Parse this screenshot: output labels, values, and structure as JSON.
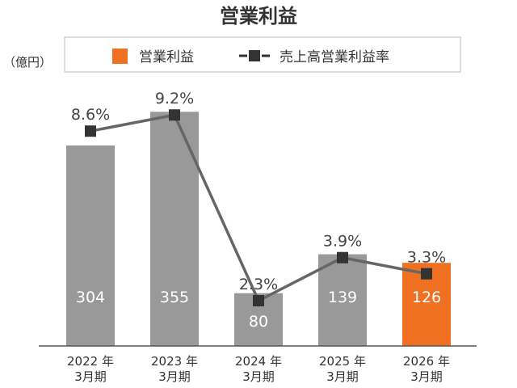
{
  "chart_data": {
    "type": "bar",
    "title": "営業利益",
    "unit_label": "（億円）",
    "categories": [
      [
        "2022 年",
        "3月期"
      ],
      [
        "2023 年",
        "3月期"
      ],
      [
        "2024 年",
        "3月期"
      ],
      [
        "2025 年",
        "3月期"
      ],
      [
        "2026 年",
        "3月期"
      ]
    ],
    "series": [
      {
        "name": "営業利益",
        "kind": "bar",
        "values": [
          304,
          355,
          80,
          139,
          126
        ],
        "labels": [
          "304",
          "355",
          "80",
          "139",
          "126"
        ],
        "color": "#999999",
        "highlight_index": 4,
        "highlight_color": "#f07022"
      },
      {
        "name": "売上高営業利益率",
        "kind": "line",
        "values": [
          8.6,
          9.2,
          2.3,
          3.9,
          3.3
        ],
        "labels": [
          "8.6%",
          "9.2%",
          "2.3%",
          "3.9%",
          "3.3%"
        ],
        "color": "#666666",
        "marker_color": "#333333"
      }
    ],
    "legend_position": "top",
    "grid": false
  },
  "colors": {
    "bar_label": "#ffffff",
    "text": "#333333",
    "legend_border": "#bbbbbb",
    "legend_bg": "#ffffff"
  }
}
